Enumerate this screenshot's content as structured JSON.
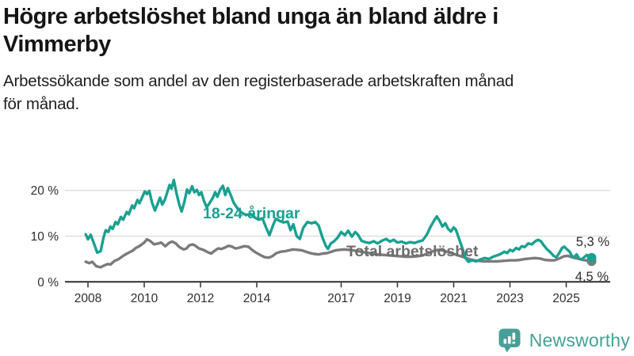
{
  "header": {
    "title_lines": [
      "Högre arbetslöshet bland unga än bland äldre i",
      "Vimmerby"
    ],
    "subtitle_lines": [
      "Arbetssökande som andel av den registerbaserade arbetskraften månad",
      "för månad."
    ]
  },
  "colors": {
    "young_line": "#1aa090",
    "total_line": "#7b7b7b",
    "total_label": "#6d6d6d",
    "axis": "#2e2e2e",
    "grid": "#dcdcdc",
    "end_label": "#2d2d2d",
    "logo": "#46a097"
  },
  "chart_data": {
    "type": "line",
    "unit": "%",
    "x_range": [
      2007.9,
      2025.95
    ],
    "y_range": [
      0,
      23
    ],
    "grid": "horizontal",
    "x_ticks": [
      2008,
      2010,
      2012,
      2014,
      2017,
      2019,
      2021,
      2023,
      2025
    ],
    "x_tick_labels": [
      "2008",
      "2010",
      "2012",
      "2014",
      "2017",
      "2019",
      "2021",
      "2023",
      "2025"
    ],
    "y_ticks": [
      {
        "value": 0,
        "label": "0 %"
      },
      {
        "value": 10,
        "label": "10 %"
      },
      {
        "value": 20,
        "label": "20 %"
      }
    ],
    "series": [
      {
        "name": "Total arbetslöshet",
        "color": "#7b7b7b",
        "label_color": "#6d6d6d",
        "end_value": 4.5,
        "end_label": "4,5 %",
        "points": [
          [
            2007.92,
            4.4
          ],
          [
            2008.05,
            4.1
          ],
          [
            2008.15,
            4.4
          ],
          [
            2008.3,
            3.4
          ],
          [
            2008.45,
            3.2
          ],
          [
            2008.58,
            3.6
          ],
          [
            2008.7,
            3.9
          ],
          [
            2008.8,
            3.8
          ],
          [
            2008.95,
            4.6
          ],
          [
            2009.1,
            5.0
          ],
          [
            2009.25,
            5.7
          ],
          [
            2009.42,
            6.3
          ],
          [
            2009.58,
            6.8
          ],
          [
            2009.7,
            7.4
          ],
          [
            2009.85,
            7.9
          ],
          [
            2010.0,
            8.6
          ],
          [
            2010.1,
            9.3
          ],
          [
            2010.22,
            8.9
          ],
          [
            2010.35,
            8.2
          ],
          [
            2010.5,
            8.4
          ],
          [
            2010.6,
            8.6
          ],
          [
            2010.75,
            7.8
          ],
          [
            2010.9,
            8.6
          ],
          [
            2011.0,
            8.8
          ],
          [
            2011.12,
            8.4
          ],
          [
            2011.25,
            7.6
          ],
          [
            2011.4,
            7.1
          ],
          [
            2011.5,
            7.3
          ],
          [
            2011.6,
            8.0
          ],
          [
            2011.72,
            8.2
          ],
          [
            2011.82,
            7.9
          ],
          [
            2011.95,
            7.3
          ],
          [
            2012.1,
            7.0
          ],
          [
            2012.25,
            6.5
          ],
          [
            2012.38,
            6.2
          ],
          [
            2012.5,
            6.8
          ],
          [
            2012.62,
            7.3
          ],
          [
            2012.75,
            7.2
          ],
          [
            2012.9,
            7.6
          ],
          [
            2013.0,
            7.9
          ],
          [
            2013.12,
            7.7
          ],
          [
            2013.25,
            7.3
          ],
          [
            2013.4,
            7.5
          ],
          [
            2013.55,
            7.8
          ],
          [
            2013.7,
            7.7
          ],
          [
            2013.85,
            6.9
          ],
          [
            2013.97,
            6.4
          ],
          [
            2014.12,
            5.9
          ],
          [
            2014.28,
            5.4
          ],
          [
            2014.42,
            5.3
          ],
          [
            2014.55,
            5.6
          ],
          [
            2014.7,
            6.3
          ],
          [
            2014.85,
            6.6
          ],
          [
            2015.0,
            6.7
          ],
          [
            2015.15,
            6.9
          ],
          [
            2015.3,
            7.1
          ],
          [
            2015.45,
            7.0
          ],
          [
            2015.6,
            6.9
          ],
          [
            2015.75,
            6.6
          ],
          [
            2015.9,
            6.3
          ],
          [
            2016.05,
            6.1
          ],
          [
            2016.2,
            6.0
          ],
          [
            2016.35,
            6.2
          ],
          [
            2016.5,
            6.3
          ],
          [
            2016.65,
            6.6
          ],
          [
            2016.8,
            6.9
          ],
          [
            2016.95,
            7.0
          ],
          [
            2017.1,
            7.1
          ],
          [
            2017.3,
            7.0
          ],
          [
            2017.5,
            6.8
          ],
          [
            2017.7,
            6.6
          ],
          [
            2017.9,
            6.4
          ],
          [
            2018.1,
            6.2
          ],
          [
            2018.3,
            6.0
          ],
          [
            2018.5,
            5.9
          ],
          [
            2018.7,
            5.8
          ],
          [
            2018.9,
            5.7
          ],
          [
            2019.1,
            5.6
          ],
          [
            2019.3,
            5.5
          ],
          [
            2019.5,
            5.5
          ],
          [
            2019.7,
            5.6
          ],
          [
            2019.9,
            5.8
          ],
          [
            2020.1,
            6.3
          ],
          [
            2020.3,
            6.8
          ],
          [
            2020.45,
            7.0
          ],
          [
            2020.6,
            6.9
          ],
          [
            2020.75,
            6.6
          ],
          [
            2020.9,
            6.3
          ],
          [
            2021.05,
            6.0
          ],
          [
            2021.25,
            5.6
          ],
          [
            2021.45,
            5.2
          ],
          [
            2021.65,
            4.8
          ],
          [
            2021.85,
            4.6
          ],
          [
            2022.05,
            4.5
          ],
          [
            2022.3,
            4.5
          ],
          [
            2022.55,
            4.5
          ],
          [
            2022.8,
            4.6
          ],
          [
            2023.0,
            4.7
          ],
          [
            2023.2,
            4.7
          ],
          [
            2023.35,
            4.8
          ],
          [
            2023.52,
            5.0
          ],
          [
            2023.7,
            5.1
          ],
          [
            2023.88,
            5.2
          ],
          [
            2024.07,
            5.1
          ],
          [
            2024.26,
            4.8
          ],
          [
            2024.42,
            4.7
          ],
          [
            2024.58,
            4.7
          ],
          [
            2024.75,
            5.1
          ],
          [
            2024.92,
            5.6
          ],
          [
            2025.06,
            5.7
          ],
          [
            2025.2,
            5.4
          ],
          [
            2025.4,
            5.1
          ],
          [
            2025.6,
            4.8
          ],
          [
            2025.78,
            4.6
          ],
          [
            2025.9,
            4.5
          ]
        ]
      },
      {
        "name": "18-24-åringar",
        "color": "#1aa090",
        "label_color": "#1aa090",
        "end_value": 5.3,
        "end_label": "5,3 %",
        "points": [
          [
            2007.92,
            10.4
          ],
          [
            2008.0,
            9.3
          ],
          [
            2008.1,
            10.3
          ],
          [
            2008.2,
            8.6
          ],
          [
            2008.33,
            6.4
          ],
          [
            2008.45,
            6.7
          ],
          [
            2008.55,
            9.6
          ],
          [
            2008.63,
            11.3
          ],
          [
            2008.72,
            10.9
          ],
          [
            2008.8,
            12.1
          ],
          [
            2008.88,
            11.6
          ],
          [
            2008.98,
            13.1
          ],
          [
            2009.06,
            12.6
          ],
          [
            2009.17,
            14.2
          ],
          [
            2009.25,
            13.6
          ],
          [
            2009.38,
            15.3
          ],
          [
            2009.45,
            14.8
          ],
          [
            2009.57,
            16.7
          ],
          [
            2009.64,
            16.1
          ],
          [
            2009.76,
            17.9
          ],
          [
            2009.83,
            17.2
          ],
          [
            2009.95,
            18.8
          ],
          [
            2010.02,
            19.8
          ],
          [
            2010.1,
            19.2
          ],
          [
            2010.18,
            19.9
          ],
          [
            2010.28,
            17.3
          ],
          [
            2010.38,
            15.6
          ],
          [
            2010.48,
            17.1
          ],
          [
            2010.56,
            18.4
          ],
          [
            2010.64,
            16.9
          ],
          [
            2010.73,
            17.9
          ],
          [
            2010.82,
            19.6
          ],
          [
            2010.9,
            21.2
          ],
          [
            2010.97,
            20.4
          ],
          [
            2011.05,
            22.3
          ],
          [
            2011.15,
            19.3
          ],
          [
            2011.25,
            16.8
          ],
          [
            2011.33,
            15.4
          ],
          [
            2011.43,
            17.6
          ],
          [
            2011.52,
            20.2
          ],
          [
            2011.6,
            19.4
          ],
          [
            2011.7,
            20.9
          ],
          [
            2011.78,
            19.6
          ],
          [
            2011.87,
            20.1
          ],
          [
            2011.95,
            19.0
          ],
          [
            2012.03,
            19.6
          ],
          [
            2012.13,
            17.6
          ],
          [
            2012.22,
            16.3
          ],
          [
            2012.33,
            17.3
          ],
          [
            2012.43,
            18.3
          ],
          [
            2012.52,
            19.6
          ],
          [
            2012.6,
            18.6
          ],
          [
            2012.7,
            20.2
          ],
          [
            2012.8,
            21.0
          ],
          [
            2012.88,
            19.0
          ],
          [
            2012.97,
            20.5
          ],
          [
            2013.06,
            19.2
          ],
          [
            2013.18,
            17.3
          ],
          [
            2013.32,
            16.0
          ],
          [
            2013.47,
            15.1
          ],
          [
            2013.62,
            14.6
          ],
          [
            2013.77,
            14.9
          ],
          [
            2013.92,
            14.1
          ],
          [
            2014.07,
            13.6
          ],
          [
            2014.2,
            13.9
          ],
          [
            2014.33,
            11.9
          ],
          [
            2014.45,
            10.2
          ],
          [
            2014.58,
            12.4
          ],
          [
            2014.68,
            13.8
          ],
          [
            2014.82,
            13.3
          ],
          [
            2014.95,
            13.0
          ],
          [
            2015.1,
            13.2
          ],
          [
            2015.2,
            11.3
          ],
          [
            2015.3,
            12.6
          ],
          [
            2015.42,
            10.0
          ],
          [
            2015.53,
            9.4
          ],
          [
            2015.65,
            11.8
          ],
          [
            2015.8,
            13.1
          ],
          [
            2015.95,
            12.8
          ],
          [
            2016.08,
            13.1
          ],
          [
            2016.2,
            12.3
          ],
          [
            2016.33,
            9.8
          ],
          [
            2016.45,
            7.9
          ],
          [
            2016.53,
            7.2
          ],
          [
            2016.63,
            8.4
          ],
          [
            2016.75,
            8.9
          ],
          [
            2016.88,
            9.7
          ],
          [
            2017.0,
            10.9
          ],
          [
            2017.13,
            10.2
          ],
          [
            2017.25,
            11.2
          ],
          [
            2017.38,
            9.9
          ],
          [
            2017.5,
            10.9
          ],
          [
            2017.6,
            10.3
          ],
          [
            2017.72,
            9.0
          ],
          [
            2017.85,
            8.7
          ],
          [
            2018.0,
            8.5
          ],
          [
            2018.15,
            8.9
          ],
          [
            2018.3,
            8.4
          ],
          [
            2018.45,
            9.0
          ],
          [
            2018.6,
            9.4
          ],
          [
            2018.73,
            8.8
          ],
          [
            2018.87,
            9.2
          ],
          [
            2019.0,
            8.6
          ],
          [
            2019.15,
            8.8
          ],
          [
            2019.3,
            8.4
          ],
          [
            2019.45,
            8.7
          ],
          [
            2019.6,
            8.5
          ],
          [
            2019.75,
            8.8
          ],
          [
            2019.9,
            9.1
          ],
          [
            2020.05,
            10.4
          ],
          [
            2020.18,
            12.1
          ],
          [
            2020.32,
            13.6
          ],
          [
            2020.4,
            14.3
          ],
          [
            2020.5,
            13.3
          ],
          [
            2020.6,
            12.1
          ],
          [
            2020.7,
            12.8
          ],
          [
            2020.8,
            11.6
          ],
          [
            2020.9,
            11.0
          ],
          [
            2021.0,
            11.9
          ],
          [
            2021.08,
            11.4
          ],
          [
            2021.18,
            9.6
          ],
          [
            2021.3,
            7.5
          ],
          [
            2021.42,
            5.2
          ],
          [
            2021.52,
            4.4
          ],
          [
            2021.65,
            4.7
          ],
          [
            2021.8,
            4.5
          ],
          [
            2021.95,
            4.9
          ],
          [
            2022.1,
            5.2
          ],
          [
            2022.25,
            5.0
          ],
          [
            2022.4,
            5.5
          ],
          [
            2022.55,
            5.8
          ],
          [
            2022.67,
            6.1
          ],
          [
            2022.8,
            6.6
          ],
          [
            2022.9,
            6.3
          ],
          [
            2023.0,
            7.0
          ],
          [
            2023.1,
            6.7
          ],
          [
            2023.22,
            7.4
          ],
          [
            2023.32,
            7.1
          ],
          [
            2023.42,
            7.8
          ],
          [
            2023.52,
            7.6
          ],
          [
            2023.65,
            8.4
          ],
          [
            2023.78,
            8.2
          ],
          [
            2023.9,
            8.9
          ],
          [
            2024.0,
            9.2
          ],
          [
            2024.1,
            8.9
          ],
          [
            2024.2,
            8.0
          ],
          [
            2024.32,
            7.1
          ],
          [
            2024.42,
            6.6
          ],
          [
            2024.55,
            5.7
          ],
          [
            2024.65,
            5.4
          ],
          [
            2024.75,
            6.3
          ],
          [
            2024.85,
            7.4
          ],
          [
            2024.93,
            7.7
          ],
          [
            2025.03,
            7.1
          ],
          [
            2025.12,
            6.6
          ],
          [
            2025.2,
            5.7
          ],
          [
            2025.28,
            5.4
          ],
          [
            2025.37,
            6.0
          ],
          [
            2025.46,
            5.1
          ],
          [
            2025.55,
            4.9
          ],
          [
            2025.64,
            5.4
          ],
          [
            2025.73,
            5.9
          ],
          [
            2025.82,
            5.6
          ],
          [
            2025.9,
            5.3
          ]
        ]
      }
    ]
  },
  "footer": {
    "logo_text": "Newsworthy"
  }
}
